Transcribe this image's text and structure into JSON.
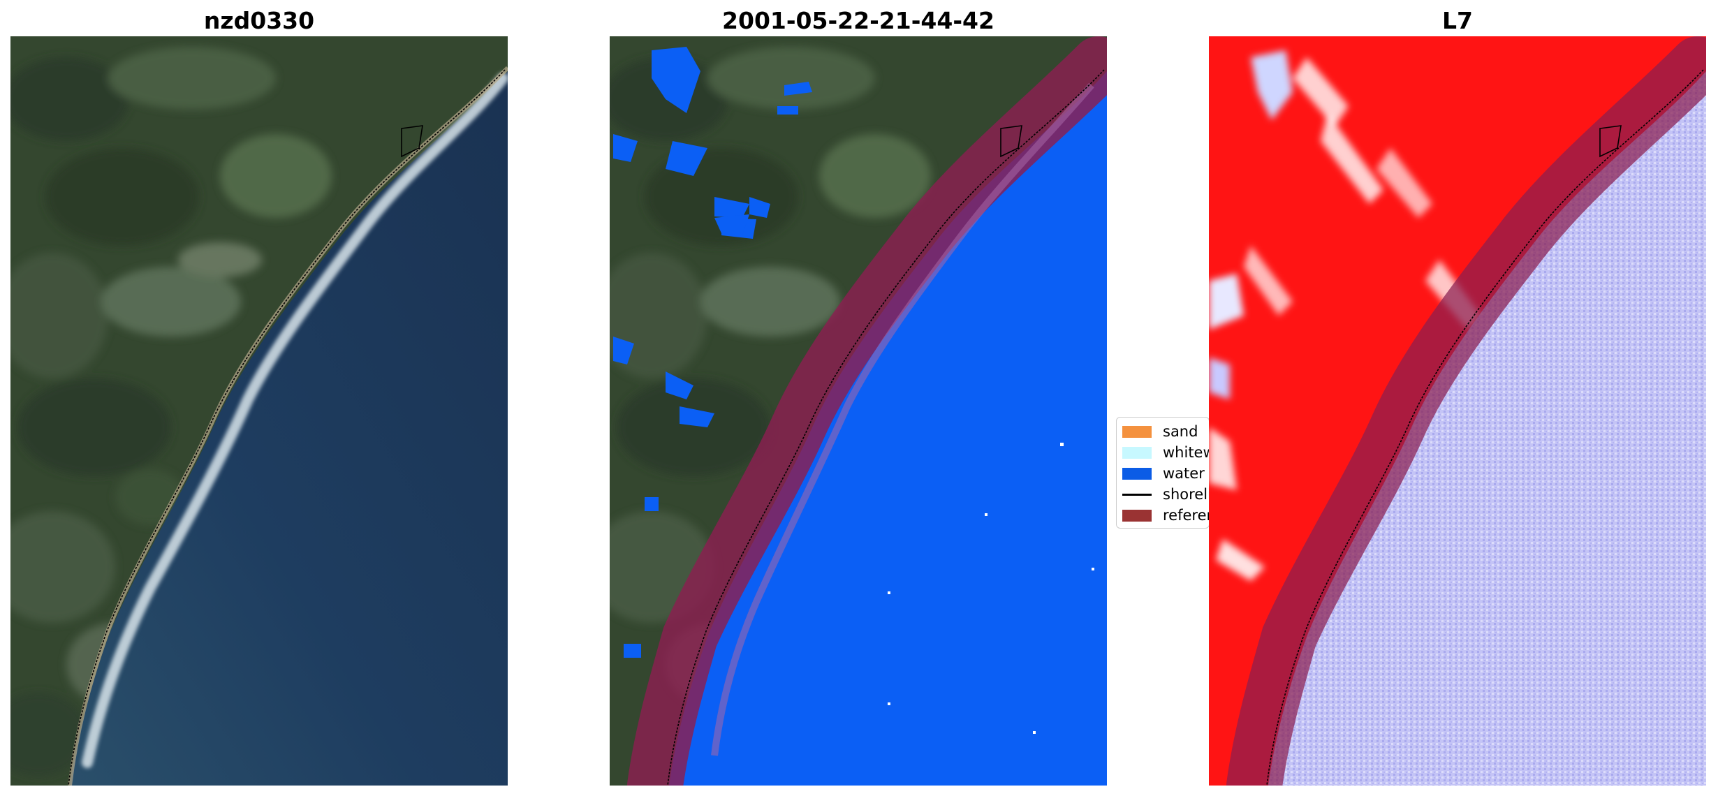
{
  "panels": [
    {
      "title": "nzd0330"
    },
    {
      "title": "2001-05-22-21-44-42"
    },
    {
      "title": "L7"
    }
  ],
  "legend": {
    "items": [
      {
        "label": "sand",
        "color": "#f4913e",
        "kind": "patch"
      },
      {
        "label": "whitewater",
        "color": "#c7f8ff",
        "kind": "patch"
      },
      {
        "label": "water",
        "color": "#0b5ce6",
        "kind": "patch"
      },
      {
        "label": "shoreline",
        "color": "#000000",
        "kind": "line"
      },
      {
        "label": "reference",
        "color": "#9a3333",
        "kind": "patch"
      }
    ]
  },
  "colors": {
    "ocean": "#1d3c5e",
    "land": "#3a4f38",
    "water_class": "#0b5ff5",
    "reference_band": "#8b1f50",
    "index_positive": "#ff1a1a",
    "index_negative": "#b8b8f4"
  }
}
